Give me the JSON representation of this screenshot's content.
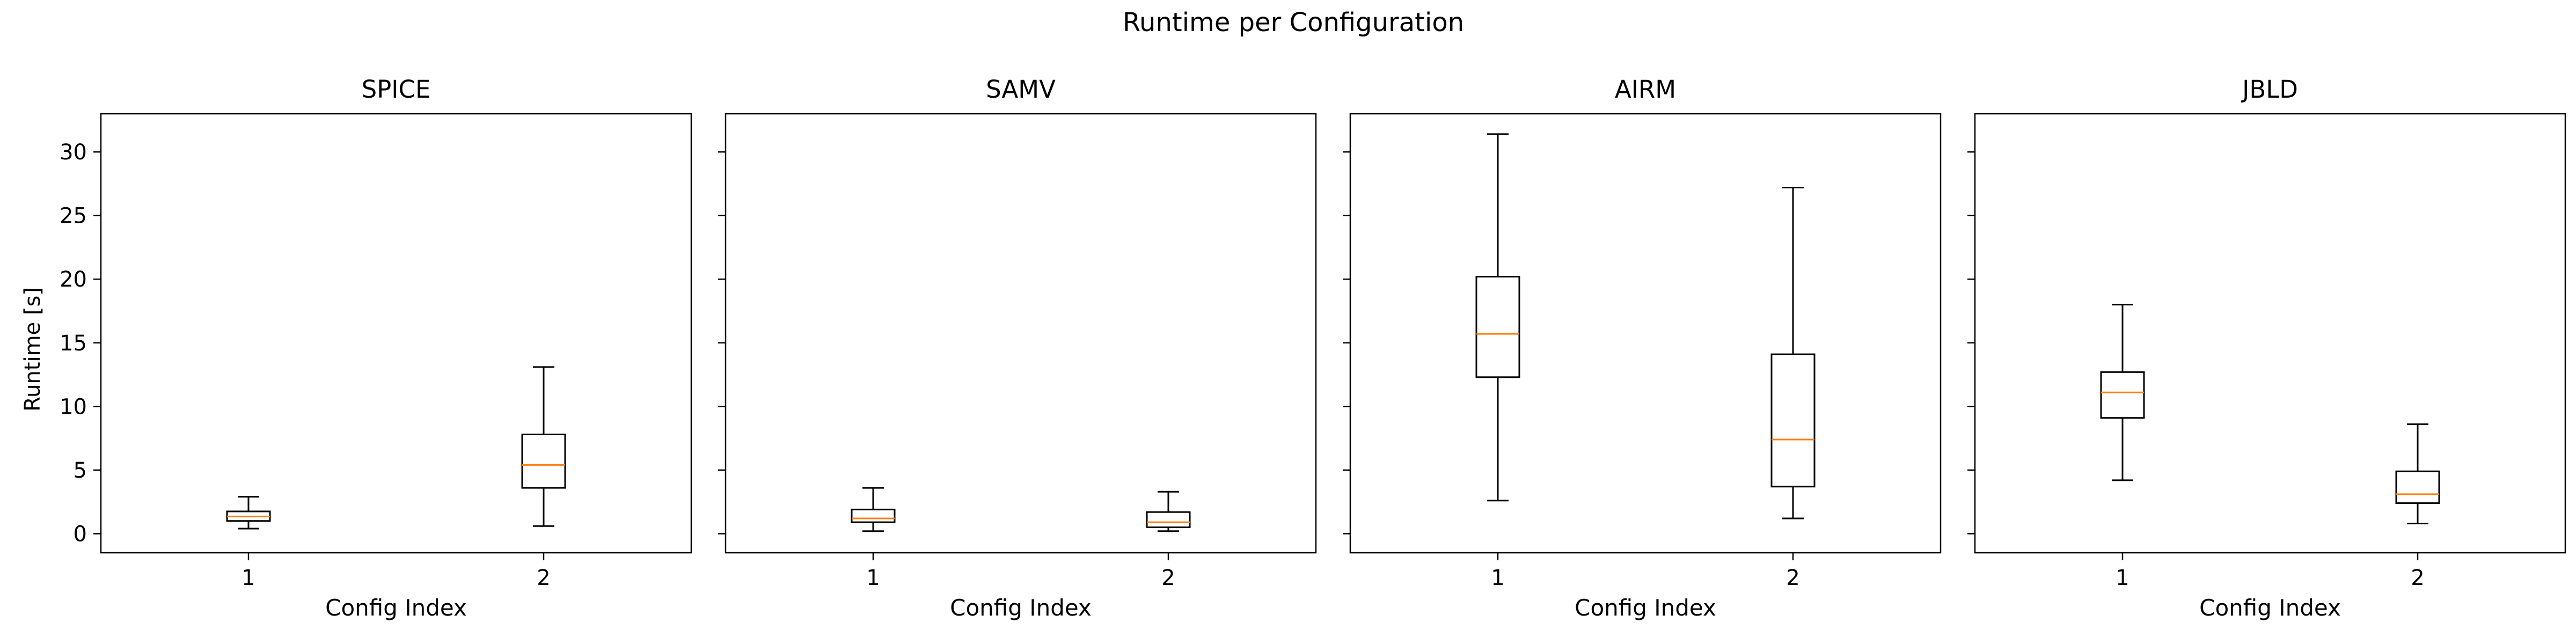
{
  "chart_data": {
    "type": "box",
    "title": "Runtime per Configuration",
    "ylabel": "Runtime [s]",
    "xlabel": "Config Index",
    "ylim": [
      -1.5,
      33
    ],
    "yticks": [
      0,
      5,
      10,
      15,
      20,
      25,
      30
    ],
    "categories": [
      "1",
      "2"
    ],
    "box_color": "#000000",
    "median_color": "#ff7f0e",
    "panels": [
      {
        "title": "SPICE",
        "boxes": [
          {
            "category": "1",
            "whisker_low": 0.4,
            "q1": 1.0,
            "median": 1.35,
            "q3": 1.75,
            "whisker_high": 2.9
          },
          {
            "category": "2",
            "whisker_low": 0.6,
            "q1": 3.6,
            "median": 5.4,
            "q3": 7.8,
            "whisker_high": 13.1
          }
        ]
      },
      {
        "title": "SAMV",
        "boxes": [
          {
            "category": "1",
            "whisker_low": 0.2,
            "q1": 0.9,
            "median": 1.2,
            "q3": 1.9,
            "whisker_high": 3.6
          },
          {
            "category": "2",
            "whisker_low": 0.2,
            "q1": 0.5,
            "median": 0.9,
            "q3": 1.7,
            "whisker_high": 3.3
          }
        ]
      },
      {
        "title": "AIRM",
        "boxes": [
          {
            "category": "1",
            "whisker_low": 2.6,
            "q1": 12.3,
            "median": 15.7,
            "q3": 20.2,
            "whisker_high": 31.4
          },
          {
            "category": "2",
            "whisker_low": 1.2,
            "q1": 3.7,
            "median": 7.4,
            "q3": 14.1,
            "whisker_high": 27.2
          }
        ]
      },
      {
        "title": "JBLD",
        "boxes": [
          {
            "category": "1",
            "whisker_low": 4.2,
            "q1": 9.1,
            "median": 11.1,
            "q3": 12.7,
            "whisker_high": 18.0
          },
          {
            "category": "2",
            "whisker_low": 0.8,
            "q1": 2.4,
            "median": 3.1,
            "q3": 4.9,
            "whisker_high": 8.6
          }
        ]
      }
    ]
  }
}
